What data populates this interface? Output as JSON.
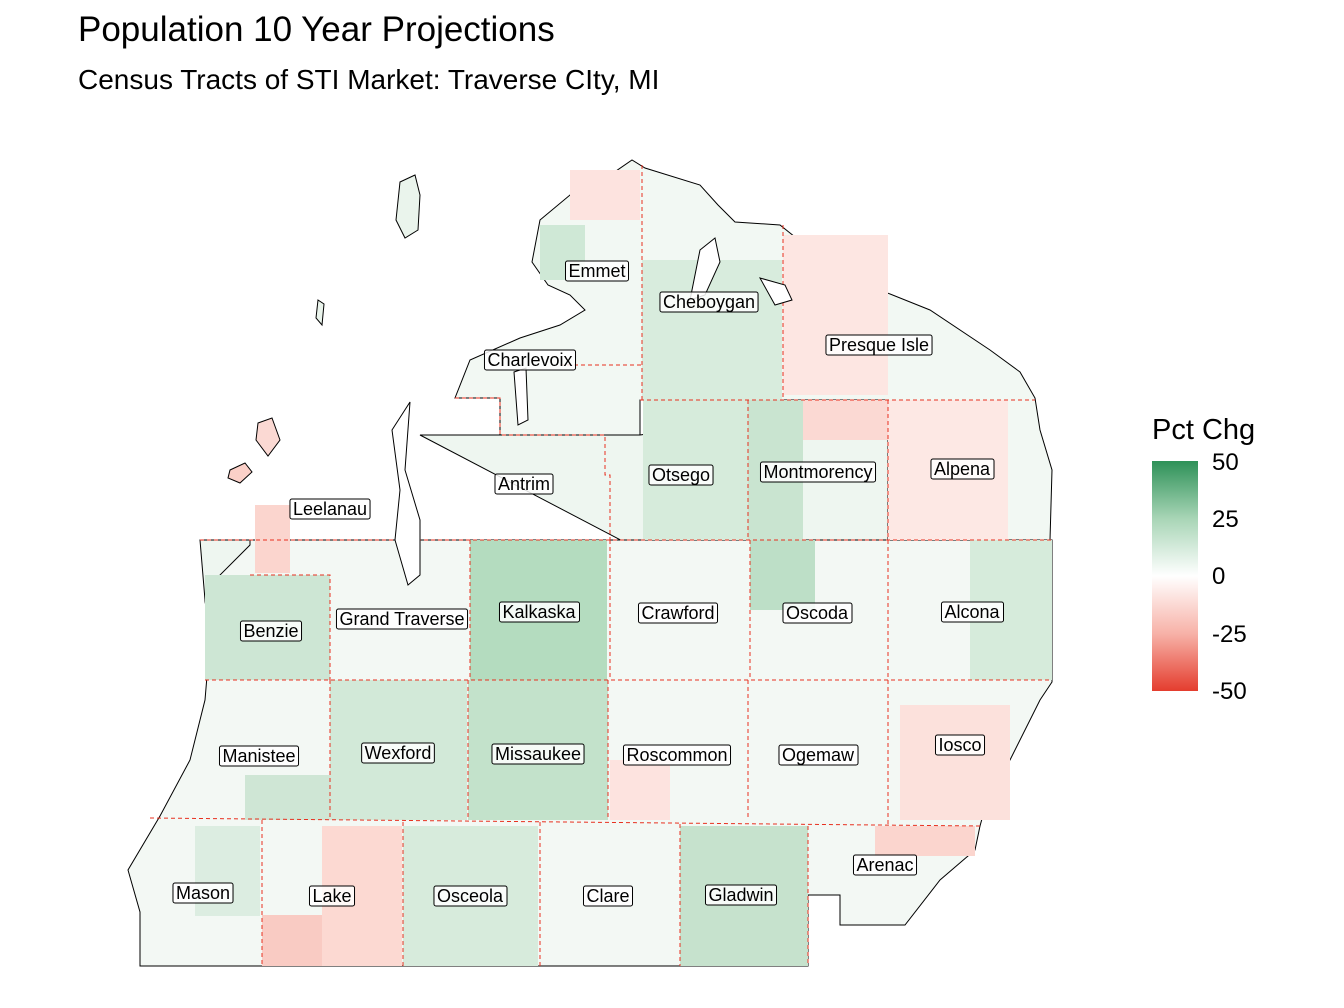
{
  "title": "Population 10 Year Projections",
  "subtitle": "Census Tracts of STI Market: Traverse CIty, MI",
  "legend": {
    "title": "Pct Chg",
    "ticks": [
      "50",
      "25",
      "0",
      "-25",
      "-50"
    ],
    "scale": {
      "max": 50,
      "mid": 0,
      "min": -50
    },
    "colors": {
      "high": "#2e9158",
      "mid": "#ffffff",
      "low": "#e43d2e"
    }
  },
  "county_border_color": "#e8301f",
  "counties": [
    {
      "name": "Emmet"
    },
    {
      "name": "Cheboygan"
    },
    {
      "name": "Presque Isle"
    },
    {
      "name": "Charlevoix"
    },
    {
      "name": "Antrim"
    },
    {
      "name": "Otsego"
    },
    {
      "name": "Montmorency"
    },
    {
      "name": "Alpena"
    },
    {
      "name": "Leelanau"
    },
    {
      "name": "Benzie"
    },
    {
      "name": "Grand Traverse"
    },
    {
      "name": "Kalkaska"
    },
    {
      "name": "Crawford"
    },
    {
      "name": "Oscoda"
    },
    {
      "name": "Alcona"
    },
    {
      "name": "Manistee"
    },
    {
      "name": "Wexford"
    },
    {
      "name": "Missaukee"
    },
    {
      "name": "Roscommon"
    },
    {
      "name": "Ogemaw"
    },
    {
      "name": "Iosco"
    },
    {
      "name": "Arenac"
    },
    {
      "name": "Mason"
    },
    {
      "name": "Lake"
    },
    {
      "name": "Osceola"
    },
    {
      "name": "Clare"
    },
    {
      "name": "Gladwin"
    }
  ]
}
